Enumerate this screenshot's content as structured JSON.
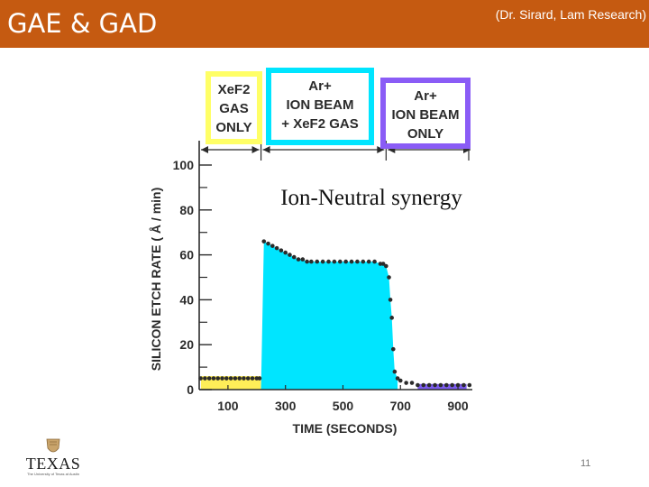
{
  "slide": {
    "title": "GAE & GAD",
    "credit": "(Dr. Sirard, Lam Research)",
    "page_number": "11",
    "logo_text": "TEXAS",
    "logo_subtext": "The University of Texas at Austin"
  },
  "colors": {
    "header": "#c55a11",
    "phase_gas_only": "#ffff66",
    "phase_ion_plus_gas": "#00e5ff",
    "phase_ion_only": "#8a5cf6",
    "fill_synergy": "#00e5ff",
    "fill_gas_only": "#ffee58",
    "fill_ion_only": "#7c5cf0",
    "ink": "#2b2b2b"
  },
  "chart_data": {
    "type": "scatter",
    "title": "",
    "annotation": "Ion-Neutral synergy",
    "xlabel": "TIME (SECONDS)",
    "ylabel": "SILICON ETCH RATE ( Å / min)",
    "xlim": [
      0,
      950
    ],
    "ylim": [
      0,
      100
    ],
    "x_ticks": [
      100,
      300,
      500,
      700,
      900
    ],
    "x_tick_labels": [
      "100",
      "300",
      "500",
      "700",
      "900"
    ],
    "y_ticks": [
      0,
      20,
      40,
      60,
      80,
      100
    ],
    "y_tick_labels": [
      "0",
      "20",
      "40",
      "60",
      "80",
      "100"
    ],
    "phases": [
      {
        "label_lines": [
          "XeF2",
          "GAS",
          "ONLY"
        ],
        "x_start": 0,
        "x_end": 215,
        "color": "#ffff66"
      },
      {
        "label_lines": [
          "Ar+",
          "ION BEAM",
          "+ XeF2 GAS"
        ],
        "x_start": 215,
        "x_end": 650,
        "color": "#00e5ff"
      },
      {
        "label_lines": [
          "Ar+",
          "ION BEAM",
          "ONLY"
        ],
        "x_start": 650,
        "x_end": 950,
        "color": "#8a5cf6"
      }
    ],
    "series": [
      {
        "x": [
          5,
          20,
          35,
          50,
          65,
          80,
          95,
          110,
          125,
          140,
          155,
          170,
          185,
          200,
          210,
          225,
          240,
          255,
          270,
          285,
          300,
          315,
          330,
          345,
          360,
          375,
          390,
          410,
          430,
          450,
          470,
          490,
          510,
          530,
          550,
          570,
          590,
          610,
          630,
          640,
          650,
          660,
          665,
          670,
          675,
          680,
          690,
          700,
          720,
          740,
          760,
          780,
          800,
          820,
          840,
          860,
          880,
          900,
          920,
          940
        ],
        "y": [
          5,
          5,
          5,
          5,
          5,
          5,
          5,
          5,
          5,
          5,
          5,
          5,
          5,
          5,
          5,
          66,
          65,
          64,
          63,
          62,
          61,
          60,
          59,
          58,
          58,
          57,
          57,
          57,
          57,
          57,
          57,
          57,
          57,
          57,
          57,
          57,
          57,
          57,
          56,
          56,
          55,
          50,
          40,
          32,
          18,
          8,
          5,
          4,
          3,
          3,
          2,
          2,
          2,
          2,
          2,
          2,
          2,
          2,
          2,
          2
        ]
      }
    ]
  }
}
